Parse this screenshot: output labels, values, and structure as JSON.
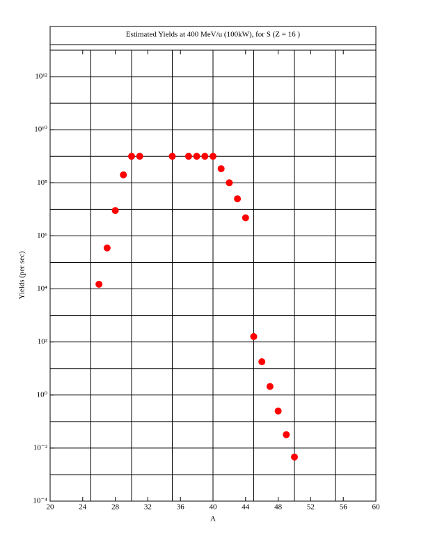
{
  "chart_data": {
    "type": "scatter",
    "title": "Estimated Yields at 400 MeV/u (100kW), for S (Z = 16 )",
    "x_label": "A",
    "y_label": "Yields (per sec)",
    "log_y": true,
    "grid": true,
    "color": "#ff0000",
    "xlim": [
      20,
      60
    ],
    "xticks": [
      20,
      24,
      28,
      32,
      36,
      40,
      44,
      48,
      52,
      56,
      60
    ],
    "xgrid": [
      25,
      30,
      35,
      40,
      45,
      50,
      55
    ],
    "ylim": [
      0.0001,
      10000000000000
    ],
    "yticks": [
      {
        "value": 0.0001,
        "label": "10⁻⁴"
      },
      {
        "value": 0.01,
        "label": "10⁻²"
      },
      {
        "value": 1,
        "label": "10⁰"
      },
      {
        "value": 100,
        "label": "10²"
      },
      {
        "value": 10000,
        "label": "10⁴"
      },
      {
        "value": 1000000,
        "label": "10⁶"
      },
      {
        "value": 100000000,
        "label": "10⁸"
      },
      {
        "value": 10000000000,
        "label": "10¹⁰"
      },
      {
        "value": 1000000000000,
        "label": "10¹²"
      }
    ],
    "ygrid": [
      0.001,
      0.01,
      0.1,
      1,
      10,
      100,
      1000,
      10000,
      100000,
      1000000,
      10000000,
      100000000,
      1000000000,
      10000000000,
      100000000000,
      1000000000000
    ],
    "x": [
      26,
      27,
      28,
      29,
      30,
      31,
      35,
      37,
      38,
      39,
      40,
      41,
      42,
      43,
      44,
      45,
      46,
      47,
      48,
      49,
      50
    ],
    "values": [
      15000,
      350000,
      9000000,
      200000000,
      1000000000,
      1000000000,
      1000000000,
      1000000000,
      1000000000,
      1000000000,
      1000000000,
      340000000,
      100000000,
      25000000,
      4800000,
      160,
      18,
      2.1,
      0.25,
      0.032,
      0.0046
    ]
  }
}
